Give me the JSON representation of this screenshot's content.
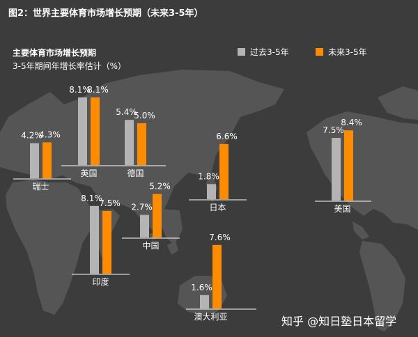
{
  "header": {
    "title": "图2：世界主要体育市场增长预期（未来3-5年）",
    "subtitle": "主要体育市场增长预期",
    "unit_label": "3-5年期间年增长率估计（%）"
  },
  "watermark": "知乎 @知日塾日本留学",
  "colors": {
    "past": "#b4b4b4",
    "future": "#ff8c00",
    "map": "#555555",
    "background": "#3c3c3c"
  },
  "chart_data": {
    "type": "bar",
    "title": "图2：世界主要体育市场增长预期（未来3-5年）",
    "subtitle": "主要体育市场增长预期",
    "ylabel": "3-5年期间年增长率估计（%）",
    "legend_position": "top-right",
    "categories": [
      "瑞士",
      "英国",
      "德国",
      "日本",
      "印度",
      "中国",
      "澳大利亚",
      "美国"
    ],
    "series": [
      {
        "name": "过去3-5年",
        "values": [
          4.2,
          8.1,
          5.4,
          1.8,
          8.1,
          2.7,
          1.6,
          7.5
        ],
        "labels": [
          "4.2%",
          "8.1%",
          "5.4%",
          "1.8%",
          "8.1%",
          "2.7%",
          "1.6%",
          "7.5%"
        ]
      },
      {
        "name": "未来3-5年",
        "values": [
          4.3,
          8.1,
          5.0,
          6.6,
          7.5,
          5.2,
          7.6,
          8.4
        ],
        "labels": [
          "4.3%",
          "8.1%",
          "5.0%",
          "6.6%",
          "7.5%",
          "5.2%",
          "7.6%",
          "8.4%"
        ]
      }
    ]
  }
}
